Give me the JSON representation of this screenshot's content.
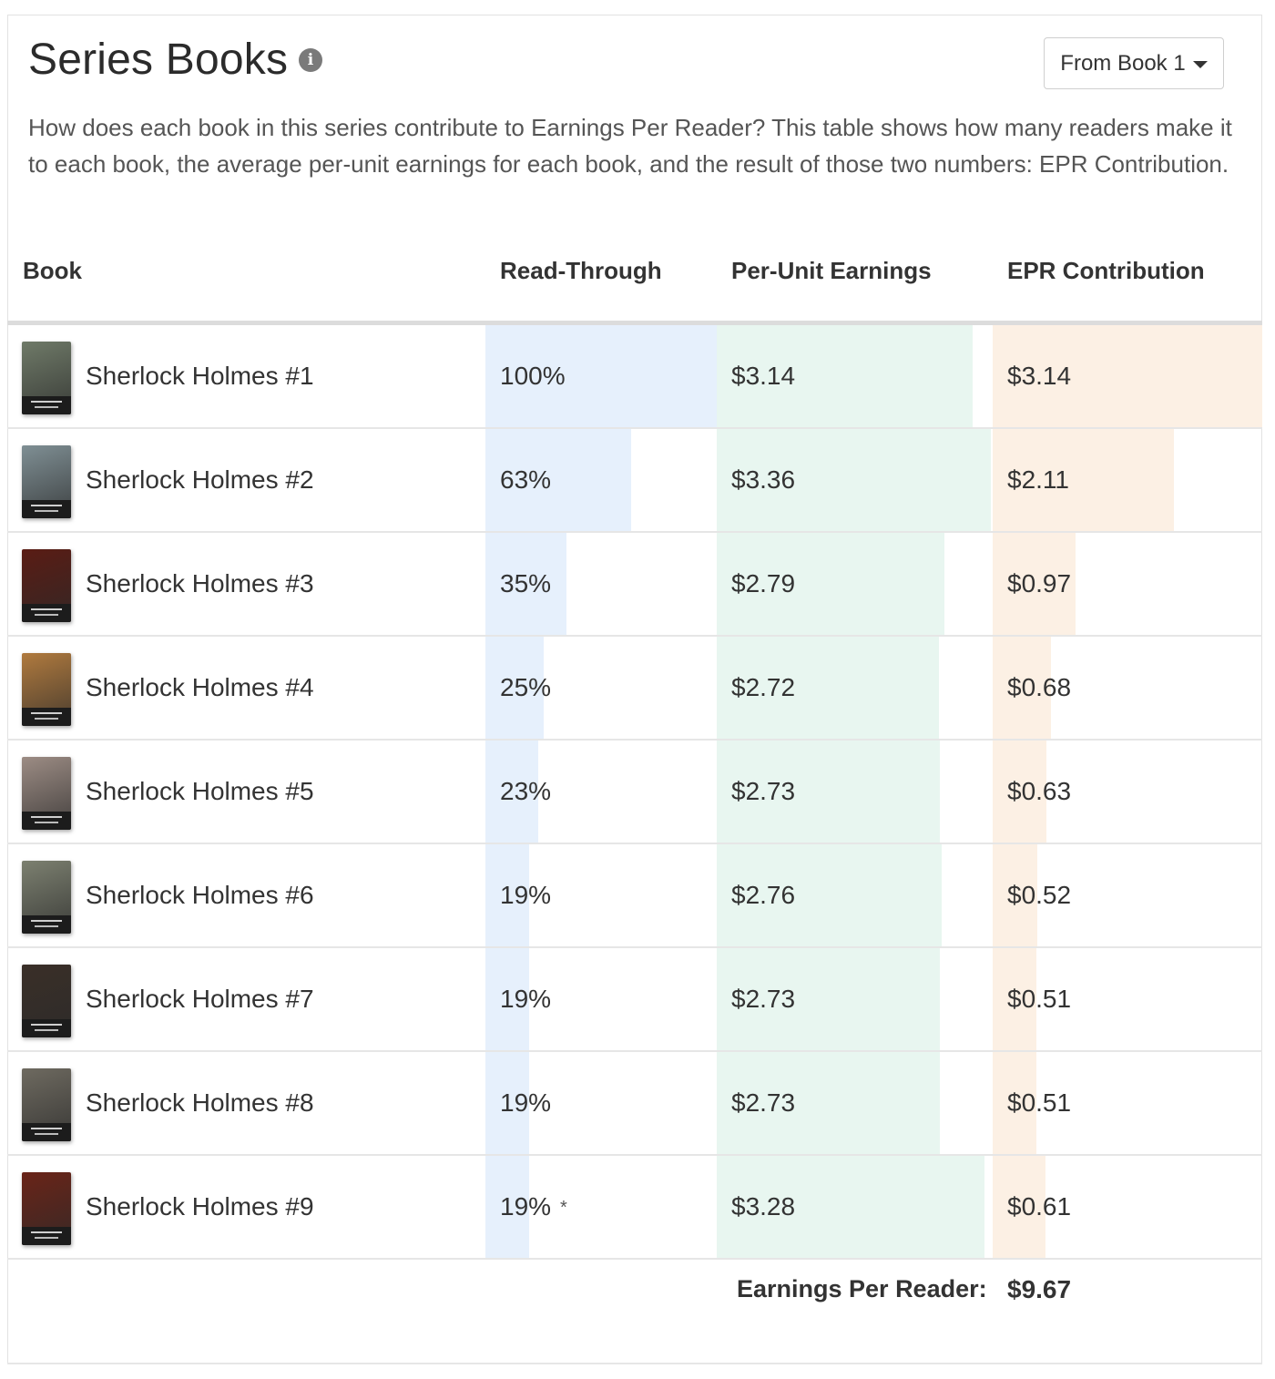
{
  "header": {
    "title": "Series Books",
    "info_icon": "info-icon",
    "dropdown_label": "From Book 1",
    "description": "How does each book in this series contribute to Earnings Per Reader? This table shows how many readers make it to each book, the average per-unit earnings for each book, and the result of those two numbers: EPR Contribution."
  },
  "colors": {
    "readthrough_bar": "#e6f0fc",
    "per_unit_bar": "#e8f6f0",
    "epr_bar": "#fcf0e4"
  },
  "table": {
    "columns": [
      "Book",
      "Read-Through",
      "Per-Unit Earnings",
      "EPR Contribution"
    ],
    "rows": [
      {
        "book": "Sherlock Holmes #1",
        "read_through": "100%",
        "read_through_value": 1.0,
        "per_unit": "$3.14",
        "per_unit_value": 3.14,
        "epr": "$3.14",
        "epr_value": 3.14,
        "note": "",
        "cover_color": "#6f7a68"
      },
      {
        "book": "Sherlock Holmes #2",
        "read_through": "63%",
        "read_through_value": 0.63,
        "per_unit": "$3.36",
        "per_unit_value": 3.36,
        "epr": "$2.11",
        "epr_value": 2.11,
        "note": "",
        "cover_color": "#7f8f94"
      },
      {
        "book": "Sherlock Holmes #3",
        "read_through": "35%",
        "read_through_value": 0.35,
        "per_unit": "$2.79",
        "per_unit_value": 2.79,
        "epr": "$0.97",
        "epr_value": 0.97,
        "note": "",
        "cover_color": "#5a1c14"
      },
      {
        "book": "Sherlock Holmes #4",
        "read_through": "25%",
        "read_through_value": 0.25,
        "per_unit": "$2.72",
        "per_unit_value": 2.72,
        "epr": "$0.68",
        "epr_value": 0.68,
        "note": "",
        "cover_color": "#b07a3e"
      },
      {
        "book": "Sherlock Holmes #5",
        "read_through": "23%",
        "read_through_value": 0.23,
        "per_unit": "$2.73",
        "per_unit_value": 2.73,
        "epr": "$0.63",
        "epr_value": 0.63,
        "note": "",
        "cover_color": "#9c8c84"
      },
      {
        "book": "Sherlock Holmes #6",
        "read_through": "19%",
        "read_through_value": 0.19,
        "per_unit": "$2.76",
        "per_unit_value": 2.76,
        "epr": "$0.52",
        "epr_value": 0.52,
        "note": "",
        "cover_color": "#7c8070"
      },
      {
        "book": "Sherlock Holmes #7",
        "read_through": "19%",
        "read_through_value": 0.19,
        "per_unit": "$2.73",
        "per_unit_value": 2.73,
        "epr": "$0.51",
        "epr_value": 0.51,
        "note": "",
        "cover_color": "#3a2f28"
      },
      {
        "book": "Sherlock Holmes #8",
        "read_through": "19%",
        "read_through_value": 0.19,
        "per_unit": "$2.73",
        "per_unit_value": 2.73,
        "epr": "$0.51",
        "epr_value": 0.51,
        "note": "",
        "cover_color": "#6e6a60"
      },
      {
        "book": "Sherlock Holmes #9",
        "read_through": "19%",
        "read_through_value": 0.19,
        "per_unit": "$3.28",
        "per_unit_value": 3.28,
        "epr": "$0.61",
        "epr_value": 0.61,
        "note": "*",
        "cover_color": "#6a2418"
      }
    ]
  },
  "footer": {
    "label": "Earnings Per Reader:",
    "value": "$9.67"
  }
}
